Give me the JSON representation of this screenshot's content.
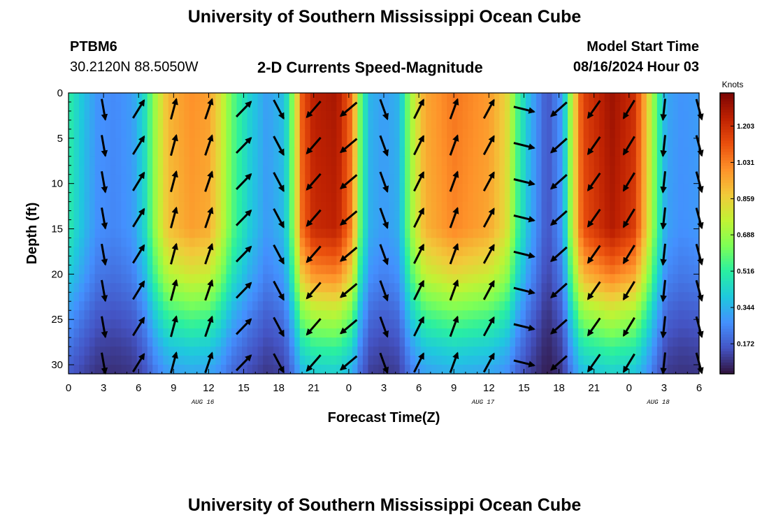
{
  "header": {
    "title": "University of Southern Mississippi Ocean Cube",
    "station": "PTBM6",
    "coordinates": "30.2120N  88.5050W",
    "plot_title": "2-D Currents Speed-Magnitude",
    "model_start_label": "Model Start Time",
    "model_start_value": "08/16/2024 Hour 03"
  },
  "footer": {
    "title": "University of Southern Mississippi Ocean Cube"
  },
  "colorbar": {
    "unit": "Knots",
    "tick_labels": [
      "1.203",
      "1.031",
      "0.859",
      "0.688",
      "0.516",
      "0.344",
      "0.172"
    ],
    "tick_values": [
      1.203,
      1.031,
      0.859,
      0.688,
      0.516,
      0.344,
      0.172
    ],
    "range": [
      0.03,
      1.36
    ],
    "colors": [
      "#30123b",
      "#4454c4",
      "#4490fe",
      "#1fc8de",
      "#29efa2",
      "#7dff56",
      "#c1f334",
      "#f1ca3a",
      "#fe922a",
      "#ea4f0d",
      "#be2102",
      "#7a0403"
    ]
  },
  "chart_data": {
    "type": "heatmap",
    "title": "2-D Currents Speed-Magnitude",
    "xlabel": "Forecast Time(Z)",
    "ylabel": "Depth (ft)",
    "x_tick_labels": [
      "0",
      "3",
      "6",
      "9",
      "12",
      "15",
      "18",
      "21",
      "0",
      "3",
      "6",
      "9",
      "12",
      "15",
      "18",
      "21",
      "0",
      "3",
      "6"
    ],
    "x_range_hours": [
      0,
      54
    ],
    "date_labels": [
      {
        "text": "AUG 16",
        "hour": 11.5
      },
      {
        "text": "AUG 17",
        "hour": 35.5
      },
      {
        "text": "AUG 18",
        "hour": 50.5
      }
    ],
    "y_tick_labels": [
      "0",
      "5",
      "10",
      "15",
      "20",
      "25",
      "30"
    ],
    "y_range_ft": [
      0,
      31
    ],
    "units": "knots",
    "time_profile_surface_knots": [
      {
        "hour": 0,
        "speed": 0.52
      },
      {
        "hour": 0.6,
        "speed": 0.45
      },
      {
        "hour": 1.5,
        "speed": 0.36
      },
      {
        "hour": 2.5,
        "speed": 0.28
      },
      {
        "hour": 4,
        "speed": 0.26
      },
      {
        "hour": 5.5,
        "speed": 0.3
      },
      {
        "hour": 6.5,
        "speed": 0.45
      },
      {
        "hour": 7.5,
        "speed": 0.72
      },
      {
        "hour": 8.5,
        "speed": 0.92
      },
      {
        "hour": 10.5,
        "speed": 1.0
      },
      {
        "hour": 12,
        "speed": 0.97
      },
      {
        "hour": 13,
        "speed": 0.82
      },
      {
        "hour": 14,
        "speed": 0.6
      },
      {
        "hour": 15.5,
        "speed": 0.42
      },
      {
        "hour": 17,
        "speed": 0.3
      },
      {
        "hour": 18.5,
        "speed": 0.38
      },
      {
        "hour": 19.3,
        "speed": 0.7
      },
      {
        "hour": 20,
        "speed": 1.1
      },
      {
        "hour": 21,
        "speed": 1.25
      },
      {
        "hour": 23,
        "speed": 1.28
      },
      {
        "hour": 24.3,
        "speed": 1.05
      },
      {
        "hour": 25,
        "speed": 0.6
      },
      {
        "hour": 25.8,
        "speed": 0.35
      },
      {
        "hour": 27,
        "speed": 0.3
      },
      {
        "hour": 28.3,
        "speed": 0.35
      },
      {
        "hour": 29.3,
        "speed": 0.7
      },
      {
        "hour": 30.5,
        "speed": 0.95
      },
      {
        "hour": 33,
        "speed": 1.05
      },
      {
        "hour": 36,
        "speed": 0.98
      },
      {
        "hour": 37.5,
        "speed": 0.85
      },
      {
        "hour": 38.5,
        "speed": 0.55
      },
      {
        "hour": 39.5,
        "speed": 0.35
      },
      {
        "hour": 41,
        "speed": 0.15
      },
      {
        "hour": 42.3,
        "speed": 0.3
      },
      {
        "hour": 43,
        "speed": 0.7
      },
      {
        "hour": 44,
        "speed": 1.15
      },
      {
        "hour": 46.5,
        "speed": 1.3
      },
      {
        "hour": 48.5,
        "speed": 1.2
      },
      {
        "hour": 49.5,
        "speed": 0.9
      },
      {
        "hour": 50.3,
        "speed": 0.6
      },
      {
        "hour": 51.2,
        "speed": 0.32
      },
      {
        "hour": 52.5,
        "speed": 0.28
      },
      {
        "hour": 54,
        "speed": 0.3
      }
    ],
    "depth_profile_factor": [
      {
        "depth": 0,
        "factor": 1.0
      },
      {
        "depth": 15,
        "factor": 0.97
      },
      {
        "depth": 20,
        "factor": 0.8
      },
      {
        "depth": 24,
        "factor": 0.6
      },
      {
        "depth": 28,
        "factor": 0.42
      },
      {
        "depth": 31,
        "factor": 0.32
      }
    ],
    "arrow_times_hours": [
      3,
      6,
      9,
      12,
      15,
      18,
      21,
      24,
      27,
      30,
      33,
      36,
      39,
      42,
      45,
      48,
      51,
      54
    ],
    "arrow_depths_ft": [
      0,
      4,
      8,
      12,
      16,
      20,
      24,
      28
    ],
    "direction_profile_deg": [
      {
        "hour": 0,
        "dir": 175
      },
      {
        "hour": 3,
        "dir": 170
      },
      {
        "hour": 4.5,
        "dir": 40
      },
      {
        "hour": 9,
        "dir": 15
      },
      {
        "hour": 13,
        "dir": 20
      },
      {
        "hour": 15.5,
        "dir": 50
      },
      {
        "hour": 17,
        "dir": 110
      },
      {
        "hour": 19.5,
        "dir": 215
      },
      {
        "hour": 22,
        "dir": 225
      },
      {
        "hour": 24,
        "dir": 230
      },
      {
        "hour": 25.5,
        "dir": 260
      },
      {
        "hour": 27,
        "dir": 160
      },
      {
        "hour": 28.5,
        "dir": 30
      },
      {
        "hour": 33,
        "dir": 20
      },
      {
        "hour": 36.5,
        "dir": 30
      },
      {
        "hour": 38.5,
        "dir": 60
      },
      {
        "hour": 40.5,
        "dir": 235
      },
      {
        "hour": 45,
        "dir": 215
      },
      {
        "hour": 49,
        "dir": 210
      },
      {
        "hour": 51.5,
        "dir": 180
      },
      {
        "hour": 54,
        "dir": 165
      }
    ]
  }
}
